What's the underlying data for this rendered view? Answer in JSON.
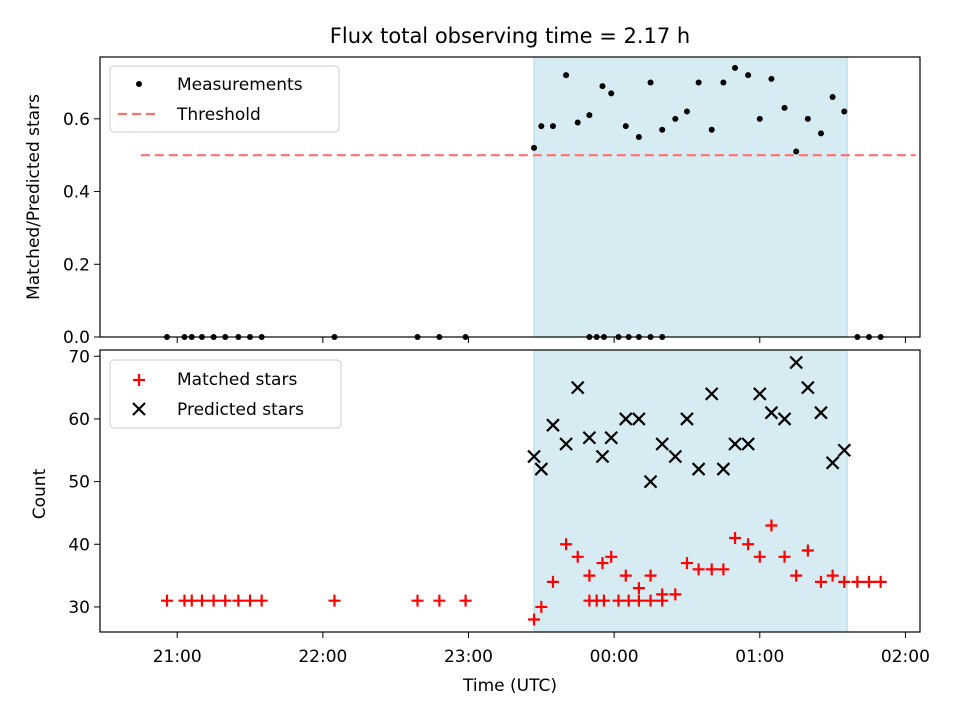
{
  "title": "Flux total observing time = 2.17 h",
  "xlabel": "Time (UTC)",
  "x_ticks": [
    "21:00",
    "22:00",
    "23:00",
    "00:00",
    "01:00",
    "02:00"
  ],
  "x_tick_hours": [
    21,
    22,
    23,
    24,
    25,
    26
  ],
  "x_range_hours": [
    20.47,
    26.1
  ],
  "observing_window_hours": [
    23.45,
    25.6
  ],
  "observing_window_color": "#add8e6",
  "chart_data": [
    {
      "type": "scatter",
      "ylabel": "Matched/Predicted stars",
      "ylim": [
        0,
        0.77
      ],
      "yticks": [
        "0.0",
        "0.2",
        "0.4",
        "0.6"
      ],
      "ytick_values": [
        0,
        0.2,
        0.4,
        0.6
      ],
      "legend_placement": "upper-left",
      "series": [
        {
          "name": "Measurements",
          "marker": "dot",
          "color": "#000000",
          "x": [
            20.93,
            21.05,
            21.1,
            21.17,
            21.25,
            21.33,
            21.42,
            21.5,
            21.58,
            22.08,
            22.65,
            22.8,
            22.98,
            23.83,
            23.88,
            23.93,
            24.03,
            24.1,
            24.17,
            24.25,
            24.33,
            23.45,
            23.5,
            23.58,
            23.67,
            23.75,
            23.83,
            23.92,
            23.98,
            24.08,
            24.17,
            24.25,
            24.33,
            24.42,
            24.5,
            24.58,
            24.67,
            24.75,
            24.83,
            24.92,
            25.0,
            25.08,
            25.17,
            25.25,
            25.33,
            25.42,
            25.5,
            25.58,
            25.67,
            25.75,
            25.83
          ],
          "y": [
            0,
            0,
            0,
            0,
            0,
            0,
            0,
            0,
            0,
            0,
            0,
            0,
            0,
            0,
            0,
            0,
            0,
            0,
            0,
            0,
            0,
            0.52,
            0.58,
            0.58,
            0.72,
            0.59,
            0.61,
            0.69,
            0.67,
            0.58,
            0.55,
            0.7,
            0.57,
            0.6,
            0.62,
            0.7,
            0.57,
            0.7,
            0.74,
            0.72,
            0.6,
            0.71,
            0.63,
            0.51,
            0.6,
            0.56,
            0.66,
            0.62,
            0,
            0,
            0
          ]
        },
        {
          "name": "Threshold",
          "marker": "dashed-line",
          "color": "#ff7070",
          "x": [
            20.75,
            26.07
          ],
          "y": [
            0.5,
            0.5
          ]
        }
      ]
    },
    {
      "type": "scatter",
      "ylabel": "Count",
      "ylim": [
        26,
        71
      ],
      "yticks": [
        "30",
        "40",
        "50",
        "60",
        "70"
      ],
      "ytick_values": [
        30,
        40,
        50,
        60,
        70
      ],
      "legend_placement": "upper-left",
      "series": [
        {
          "name": "Matched stars",
          "marker": "plus",
          "color": "#ff0000",
          "x": [
            20.93,
            21.05,
            21.1,
            21.17,
            21.25,
            21.33,
            21.42,
            21.5,
            21.58,
            22.08,
            22.65,
            22.8,
            22.98,
            23.83,
            23.88,
            23.93,
            24.03,
            24.1,
            24.17,
            24.25,
            24.33,
            23.45,
            23.5,
            23.58,
            23.67,
            23.75,
            23.83,
            23.92,
            23.98,
            24.08,
            24.17,
            24.25,
            24.33,
            24.42,
            24.5,
            24.58,
            24.67,
            24.75,
            24.83,
            24.92,
            25.0,
            25.08,
            25.17,
            25.25,
            25.33,
            25.42,
            25.5,
            25.58,
            25.67,
            25.75,
            25.83
          ],
          "y": [
            31,
            31,
            31,
            31,
            31,
            31,
            31,
            31,
            31,
            31,
            31,
            31,
            31,
            31,
            31,
            31,
            31,
            31,
            31,
            31,
            31,
            28,
            30,
            34,
            40,
            38,
            35,
            37,
            38,
            35,
            33,
            35,
            32,
            32,
            37,
            36,
            36,
            36,
            41,
            40,
            38,
            43,
            38,
            35,
            39,
            34,
            35,
            34,
            34,
            34,
            34
          ]
        },
        {
          "name": "Predicted stars",
          "marker": "x",
          "color": "#000000",
          "x": [
            23.45,
            23.5,
            23.58,
            23.67,
            23.75,
            23.83,
            23.92,
            23.98,
            24.08,
            24.17,
            24.25,
            24.33,
            24.42,
            24.5,
            24.58,
            24.67,
            24.75,
            24.83,
            24.92,
            25.0,
            25.08,
            25.17,
            25.25,
            25.33,
            25.42,
            25.5,
            25.58
          ],
          "y": [
            54,
            52,
            59,
            56,
            65,
            57,
            54,
            57,
            60,
            60,
            50,
            56,
            54,
            60,
            52,
            64,
            52,
            56,
            56,
            64,
            61,
            60,
            69,
            65,
            61,
            53,
            55
          ]
        }
      ]
    }
  ]
}
